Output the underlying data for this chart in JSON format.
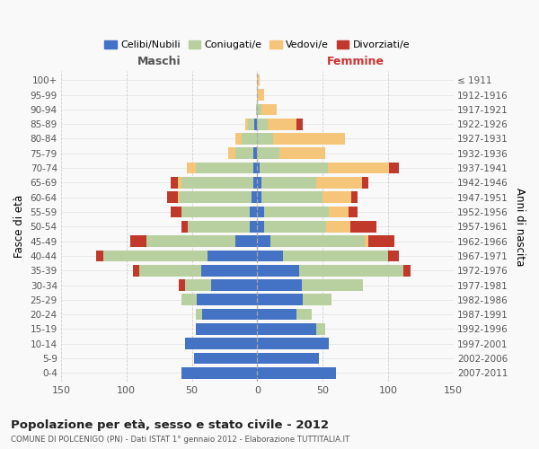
{
  "age_groups": [
    "100+",
    "95-99",
    "90-94",
    "85-89",
    "80-84",
    "75-79",
    "70-74",
    "65-69",
    "60-64",
    "55-59",
    "50-54",
    "45-49",
    "40-44",
    "35-39",
    "30-34",
    "25-29",
    "20-24",
    "15-19",
    "10-14",
    "5-9",
    "0-4"
  ],
  "birth_years": [
    "≤ 1911",
    "1912-1916",
    "1917-1921",
    "1922-1926",
    "1927-1931",
    "1932-1936",
    "1937-1941",
    "1942-1946",
    "1947-1951",
    "1952-1956",
    "1957-1961",
    "1962-1966",
    "1967-1971",
    "1972-1976",
    "1977-1981",
    "1982-1986",
    "1987-1991",
    "1992-1996",
    "1997-2001",
    "2002-2006",
    "2007-2011"
  ],
  "male_celibi": [
    0,
    0,
    0,
    2,
    0,
    3,
    3,
    3,
    4,
    6,
    6,
    17,
    38,
    43,
    35,
    46,
    42,
    47,
    55,
    48,
    58
  ],
  "male_coniugati": [
    0,
    0,
    1,
    5,
    12,
    14,
    44,
    55,
    55,
    52,
    47,
    68,
    80,
    47,
    20,
    12,
    5,
    0,
    0,
    0,
    0
  ],
  "male_vedovi": [
    0,
    0,
    0,
    2,
    5,
    5,
    7,
    3,
    2,
    0,
    0,
    0,
    0,
    0,
    0,
    0,
    0,
    0,
    0,
    0,
    0
  ],
  "male_divorziati": [
    0,
    0,
    0,
    0,
    0,
    0,
    0,
    5,
    8,
    8,
    5,
    12,
    5,
    5,
    5,
    0,
    0,
    0,
    0,
    0,
    0
  ],
  "female_nubili": [
    0,
    0,
    0,
    0,
    0,
    0,
    2,
    3,
    3,
    5,
    5,
    10,
    20,
    32,
    34,
    35,
    30,
    45,
    55,
    47,
    60
  ],
  "female_coniugate": [
    0,
    0,
    3,
    8,
    12,
    17,
    52,
    42,
    47,
    50,
    48,
    72,
    80,
    80,
    47,
    22,
    12,
    7,
    0,
    0,
    0
  ],
  "female_vedove": [
    2,
    5,
    12,
    22,
    55,
    35,
    47,
    35,
    22,
    15,
    18,
    3,
    0,
    0,
    0,
    0,
    0,
    0,
    0,
    0,
    0
  ],
  "female_divorziate": [
    0,
    0,
    0,
    5,
    0,
    0,
    7,
    5,
    5,
    7,
    20,
    20,
    8,
    5,
    0,
    0,
    0,
    0,
    0,
    0,
    0
  ],
  "color_blue": "#4472c4",
  "color_green": "#b8cfa0",
  "color_yellow": "#f5c57a",
  "color_red": "#c0392b",
  "title": "Popolazione per età, sesso e stato civile - 2012",
  "subtitle": "COMUNE DI POLCENIGO (PN) - Dati ISTAT 1° gennaio 2012 - Elaborazione TUTTITALIA.IT",
  "label_maschi": "Maschi",
  "label_femmine": "Femmine",
  "ylabel_left": "Fasce di età",
  "ylabel_right": "Anni di nascita",
  "xlim": 150,
  "bg_color": "#f9f9f9",
  "grid_color": "#bbbbbb"
}
